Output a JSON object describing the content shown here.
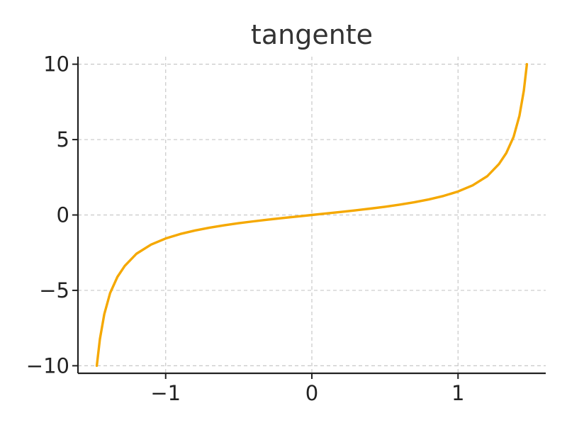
{
  "chart_data": {
    "type": "line",
    "title": "tangente",
    "xlabel": "",
    "ylabel": "",
    "xlim": [
      -1.6,
      1.6
    ],
    "ylim": [
      -10.5,
      10.5
    ],
    "x_ticks": [
      {
        "value": -1,
        "label": "−1"
      },
      {
        "value": 0,
        "label": "0"
      },
      {
        "value": 1,
        "label": "1"
      }
    ],
    "y_ticks": [
      {
        "value": 10,
        "label": "10"
      },
      {
        "value": 5,
        "label": "5"
      },
      {
        "value": 0,
        "label": "0"
      },
      {
        "value": -5,
        "label": "−5"
      },
      {
        "value": -10,
        "label": "−10"
      }
    ],
    "grid": true,
    "series": [
      {
        "color": "#F5A800",
        "x": [
          -1.4711,
          -1.45,
          -1.42,
          -1.38,
          -1.33,
          -1.28,
          -1.2,
          -1.1,
          -1.0,
          -0.9,
          -0.8,
          -0.7,
          -0.6,
          -0.5,
          -0.4,
          -0.3,
          -0.2,
          -0.1,
          0.0,
          0.1,
          0.2,
          0.3,
          0.4,
          0.5,
          0.6,
          0.7,
          0.8,
          0.9,
          1.0,
          1.1,
          1.2,
          1.28,
          1.33,
          1.38,
          1.42,
          1.45,
          1.4711
        ],
        "y": [
          -10.0,
          -8.238,
          -6.581,
          -5.177,
          -4.105,
          -3.38,
          -2.572,
          -1.965,
          -1.557,
          -1.26,
          -1.03,
          -0.842,
          -0.684,
          -0.546,
          -0.423,
          -0.309,
          -0.203,
          -0.1,
          0.0,
          0.1,
          0.203,
          0.309,
          0.423,
          0.546,
          0.684,
          0.842,
          1.03,
          1.26,
          1.557,
          1.965,
          2.572,
          3.38,
          4.105,
          5.177,
          6.581,
          8.238,
          10.0
        ]
      }
    ]
  }
}
